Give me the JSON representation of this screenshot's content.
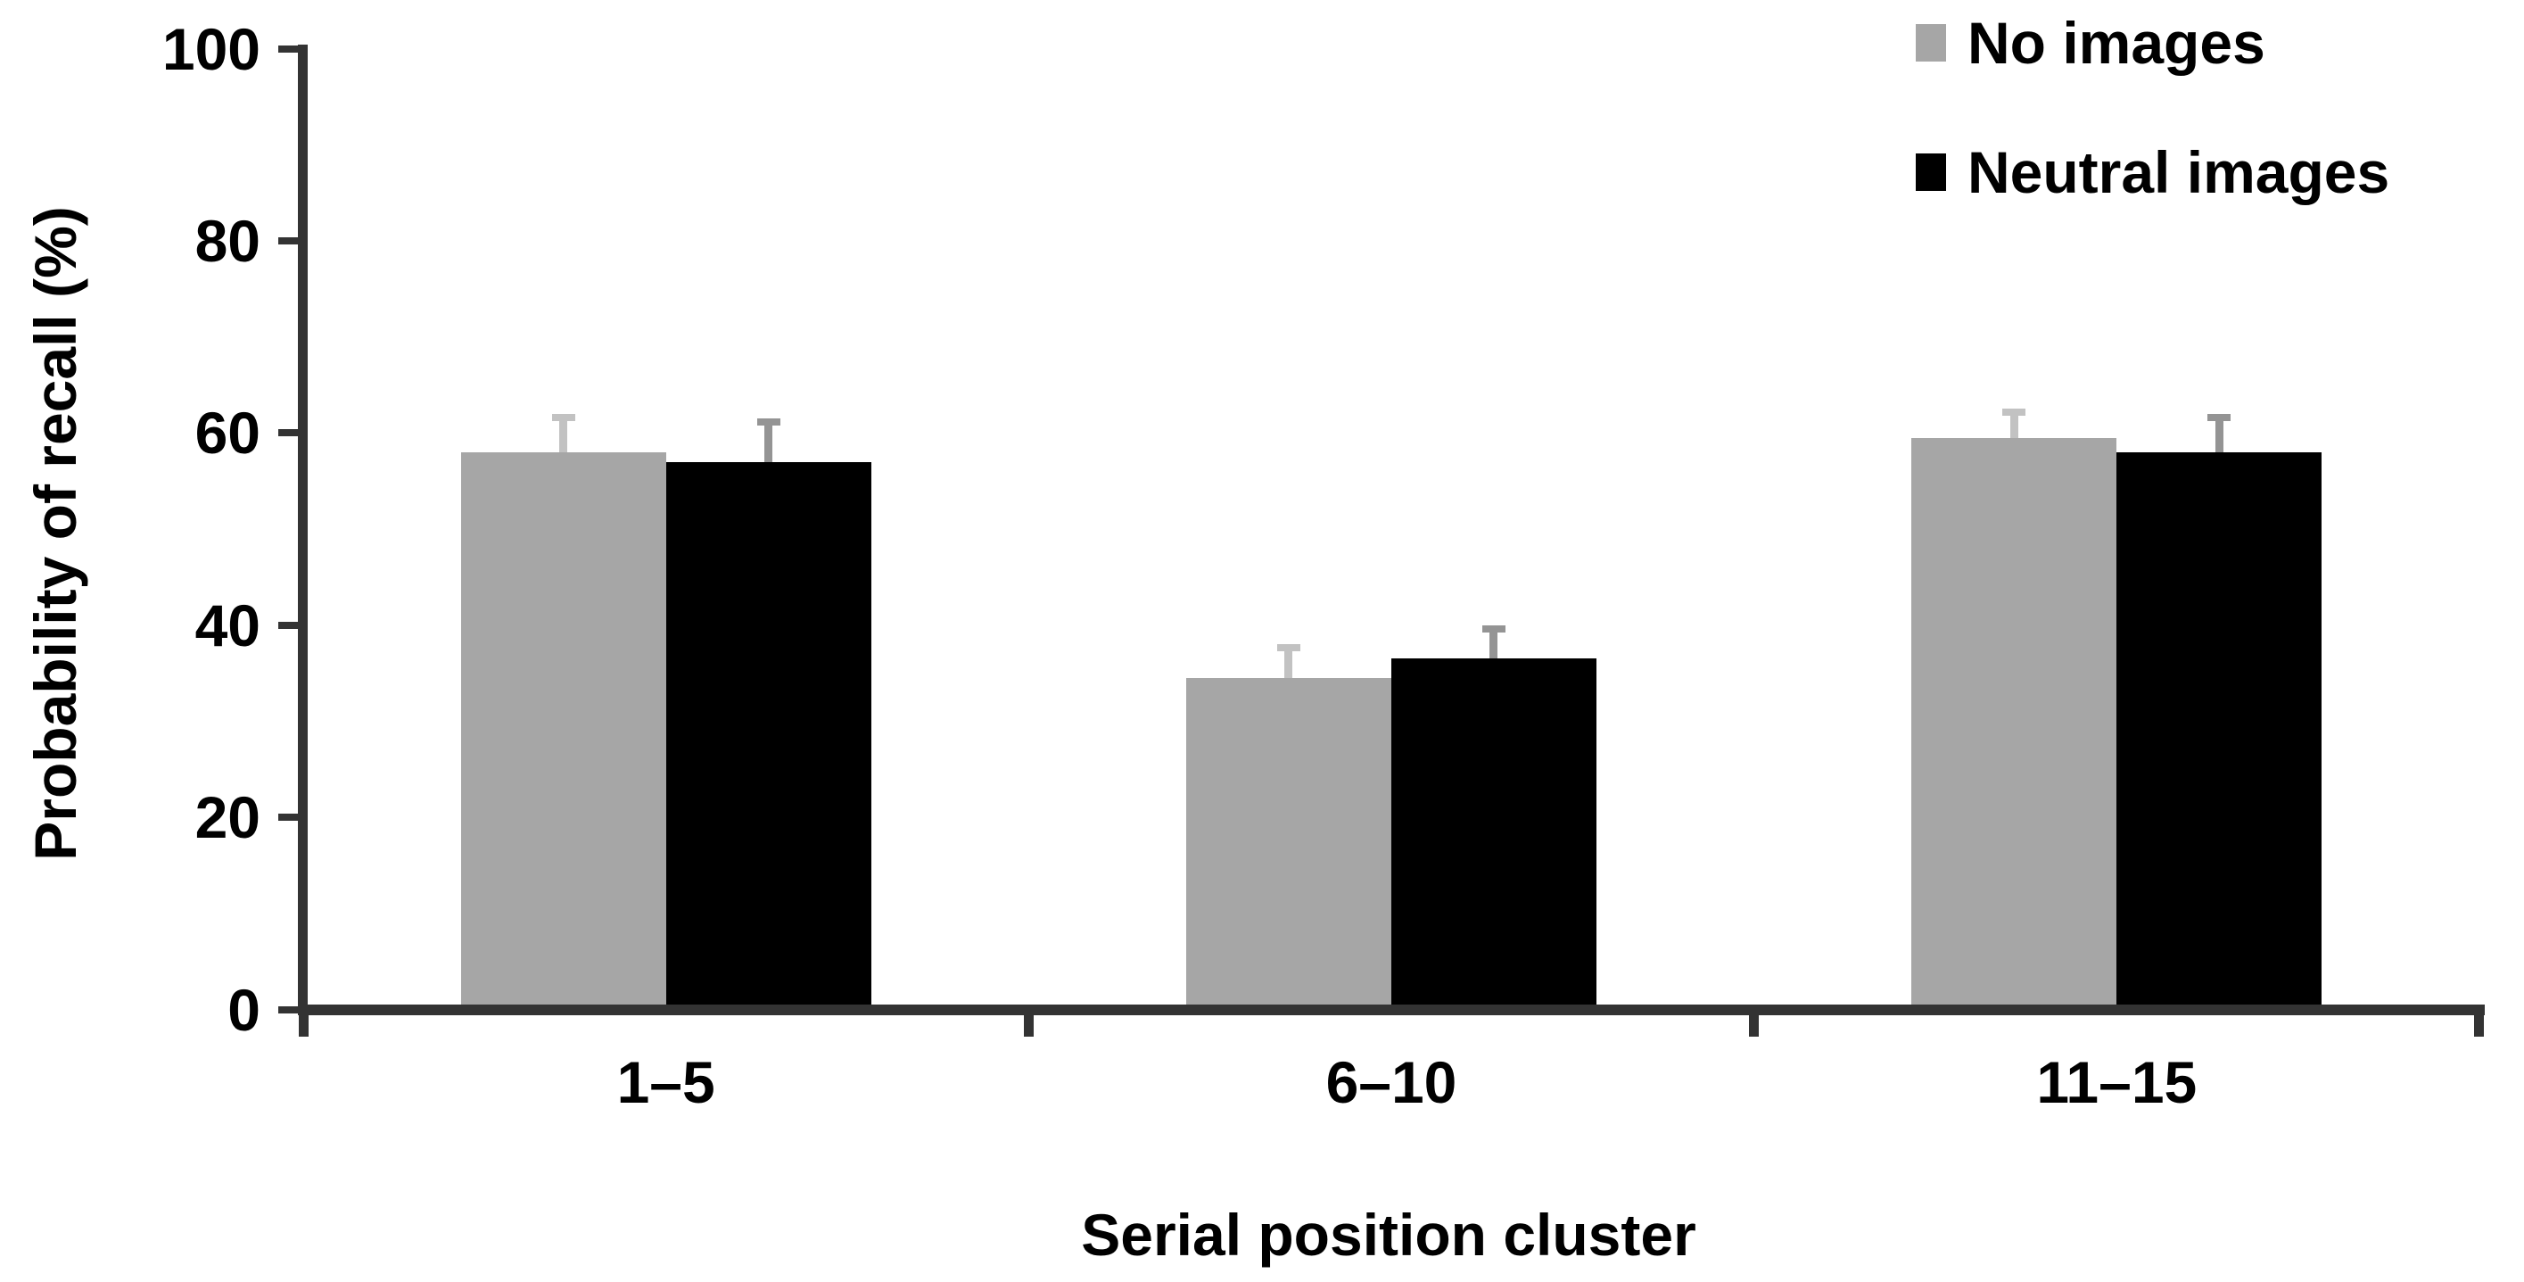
{
  "chart_data": {
    "type": "bar",
    "title": "",
    "xlabel": "Serial position cluster",
    "ylabel": "Probability of recall (%)",
    "categories": [
      "1–5",
      "6–10",
      "11–15"
    ],
    "series": [
      {
        "name": "No images",
        "color": "#a6a6a6",
        "error_color": "#c2c2c2",
        "values": [
          58,
          34.5,
          59.5
        ],
        "errors_plus": [
          4,
          3.5,
          3
        ]
      },
      {
        "name": "Neutral images",
        "color": "#000000",
        "error_color": "#949494",
        "values": [
          57,
          36.5,
          58
        ],
        "errors_plus": [
          4.5,
          3.5,
          4
        ]
      }
    ],
    "ylim": [
      0,
      100
    ],
    "y_ticks": [
      0,
      20,
      40,
      60,
      80,
      100
    ],
    "grid": "off",
    "legend_position": "top-right",
    "error_bars": "upper-only",
    "axis_color": "#333333",
    "text_color": "#000000"
  }
}
